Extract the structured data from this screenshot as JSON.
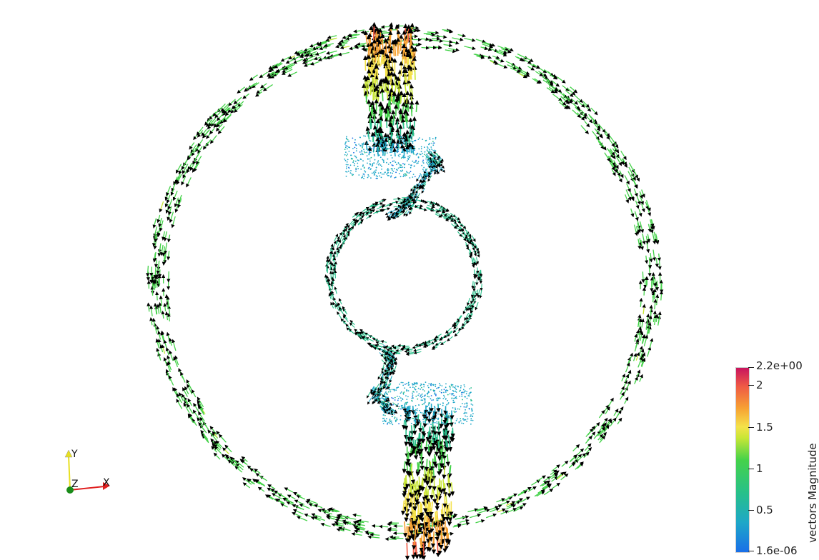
{
  "scene": {
    "description_free": true,
    "colormap_stops": [
      "#1a6fe8",
      "#1ea7c8",
      "#27c08a",
      "#45d24a",
      "#c8e636",
      "#f4e24a",
      "#f7a233",
      "#ef5a45",
      "#c8145e"
    ]
  },
  "axes": {
    "x_label": "X",
    "y_label": "Y",
    "z_label": "Z",
    "x_color": "#e02020",
    "y_color": "#e8e020",
    "z_color": "#1a8c1a"
  },
  "colorbar": {
    "title": "vectors Magnitude",
    "ticks": [
      {
        "label": "2.2e+00",
        "value": 2.2
      },
      {
        "label": "2",
        "value": 2.0
      },
      {
        "label": "1.5",
        "value": 1.5
      },
      {
        "label": "1",
        "value": 1.0
      },
      {
        "label": "0.5",
        "value": 0.5
      },
      {
        "label": "1.6e-06",
        "value": 1.6e-06
      }
    ]
  }
}
